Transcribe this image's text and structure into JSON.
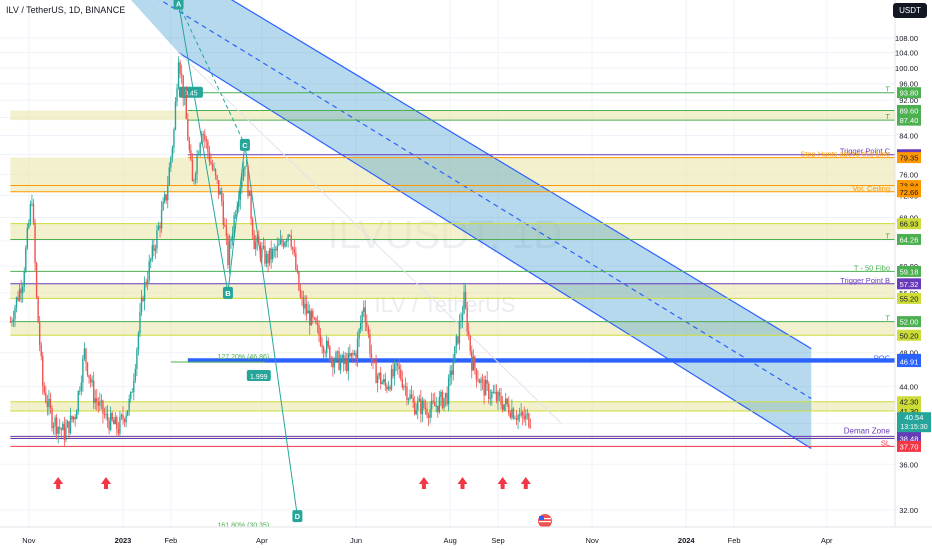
{
  "header": {
    "symbol": "ILV / TetherUS, 1D, BINANCE",
    "currency": "USDT"
  },
  "watermark": {
    "main": "ILVUSDT, 1D",
    "sub": "ILV / TetherUS"
  },
  "colors": {
    "up": "#26a69a",
    "down": "#ef5350",
    "channel": "#2962ff",
    "zone": "#e9e4a6",
    "support": "#7e57c2"
  },
  "chart_data": {
    "type": "candlestick",
    "y_axis": {
      "scale": "log",
      "range": [
        30.5,
        130
      ],
      "ticks": [
        32,
        36,
        40,
        44,
        48,
        52,
        56,
        60,
        64,
        68,
        72,
        76,
        80,
        84,
        88,
        92,
        96,
        100,
        104,
        108
      ]
    },
    "x_axis": {
      "ticks": [
        {
          "label": "Nov",
          "date": "2022-11-01"
        },
        {
          "label": "2023",
          "date": "2023-01-01"
        },
        {
          "label": "Feb",
          "date": "2023-02-01"
        },
        {
          "label": "Apr",
          "date": "2023-04-01"
        },
        {
          "label": "Jun",
          "date": "2023-06-01"
        },
        {
          "label": "Aug",
          "date": "2023-08-01"
        },
        {
          "label": "Sep",
          "date": "2023-09-01"
        },
        {
          "label": "Nov",
          "date": "2023-11-01"
        },
        {
          "label": "2024",
          "date": "2024-01-01"
        },
        {
          "label": "Feb",
          "date": "2024-02-01"
        },
        {
          "label": "Apr",
          "date": "2024-04-01"
        }
      ]
    },
    "price_path": [
      [
        "2022-10-20",
        52
      ],
      [
        "2022-10-28",
        58
      ],
      [
        "2022-11-03",
        72
      ],
      [
        "2022-11-06",
        55
      ],
      [
        "2022-11-10",
        44
      ],
      [
        "2022-11-16",
        40.5
      ],
      [
        "2022-11-24",
        39
      ],
      [
        "2022-12-01",
        41
      ],
      [
        "2022-12-07",
        48
      ],
      [
        "2022-12-13",
        43
      ],
      [
        "2022-12-21",
        40.5
      ],
      [
        "2022-12-29",
        39.5
      ],
      [
        "2023-01-06",
        42.5
      ],
      [
        "2023-01-14",
        56
      ],
      [
        "2023-01-22",
        64
      ],
      [
        "2023-01-29",
        72
      ],
      [
        "2023-02-03",
        85
      ],
      [
        "2023-02-06",
        104
      ],
      [
        "2023-02-10",
        91
      ],
      [
        "2023-02-15",
        74
      ],
      [
        "2023-02-21",
        86
      ],
      [
        "2023-02-28",
        77
      ],
      [
        "2023-03-06",
        71
      ],
      [
        "2023-03-10",
        61
      ],
      [
        "2023-03-15",
        70
      ],
      [
        "2023-03-21",
        79
      ],
      [
        "2023-03-27",
        64
      ],
      [
        "2023-04-04",
        61
      ],
      [
        "2023-04-11",
        62.5
      ],
      [
        "2023-04-19",
        66
      ],
      [
        "2023-04-26",
        55
      ],
      [
        "2023-05-06",
        51
      ],
      [
        "2023-05-16",
        47.5
      ],
      [
        "2023-05-25",
        46.5
      ],
      [
        "2023-06-01",
        48
      ],
      [
        "2023-06-06",
        54.5
      ],
      [
        "2023-06-12",
        46
      ],
      [
        "2023-06-20",
        44
      ],
      [
        "2023-06-28",
        46
      ],
      [
        "2023-07-08",
        42
      ],
      [
        "2023-07-20",
        41.5
      ],
      [
        "2023-07-30",
        43
      ],
      [
        "2023-08-05",
        49
      ],
      [
        "2023-08-10",
        55
      ],
      [
        "2023-08-15",
        47
      ],
      [
        "2023-08-22",
        44
      ],
      [
        "2023-09-01",
        42.5
      ],
      [
        "2023-09-10",
        41.5
      ],
      [
        "2023-09-16",
        40.5
      ],
      [
        "2023-09-22",
        40.5
      ]
    ],
    "horizontal_levels": [
      {
        "price": 93.8,
        "label": "T",
        "value": "93.80",
        "color": "#4caf50"
      },
      {
        "price": 89.6,
        "value": "89.60",
        "color": "#4caf50"
      },
      {
        "price": 87.4,
        "label": "T",
        "value": "87.40",
        "color": "#4caf50"
      },
      {
        "price": 79.94,
        "label": "Trigger Point C",
        "value": "79.94",
        "color": "#673ab7"
      },
      {
        "price": 79.35,
        "label": "Stop Hunts above this Line",
        "value": "79.35",
        "color": "#ff9800"
      },
      {
        "price": 73.84,
        "value": "73.84",
        "color": "#ff9800"
      },
      {
        "price": 72.66,
        "label": "Vol. Ceiling",
        "value": "72.66",
        "color": "#ff9800"
      },
      {
        "price": 66.93,
        "value": "66.93",
        "color": "#cddc39"
      },
      {
        "price": 64.26,
        "label": "T",
        "value": "64.26",
        "color": "#4caf50"
      },
      {
        "price": 59.18,
        "label": "T - 50 Fibo",
        "value": "59.18",
        "color": "#4caf50"
      },
      {
        "price": 57.32,
        "label": "Trigger Point B",
        "value": "57.32",
        "color": "#673ab7"
      },
      {
        "price": 55.2,
        "value": "55.20",
        "color": "#cddc39"
      },
      {
        "price": 52.0,
        "label": "T",
        "value": "52.00",
        "color": "#4caf50"
      },
      {
        "price": 50.2,
        "value": "50.20",
        "color": "#cddc39"
      },
      {
        "price": 47.18,
        "value": "47.18",
        "color": "#2962ff"
      },
      {
        "price": 46.91,
        "label": "POC",
        "value": "46.91",
        "color": "#2962ff"
      },
      {
        "price": 42.3,
        "value": "42.30",
        "color": "#cddc39"
      },
      {
        "price": 41.3,
        "value": "41.30",
        "color": "#cddc39"
      },
      {
        "price": 38.69,
        "value": "38.69",
        "color": "#673ab7"
      },
      {
        "price": 38.48,
        "value": "38.48",
        "color": "#673ab7"
      },
      {
        "price": 37.7,
        "label": "SL",
        "value": "37.70",
        "color": "#f23645"
      }
    ],
    "zones": [
      {
        "from": 87.4,
        "to": 89.6,
        "label": ""
      },
      {
        "from": 72.66,
        "to": 79.35,
        "label": ""
      },
      {
        "from": 64.26,
        "to": 66.93,
        "label": ""
      },
      {
        "from": 55.2,
        "to": 57.32,
        "label": ""
      },
      {
        "from": 50.2,
        "to": 52.0,
        "label": ""
      },
      {
        "from": 41.3,
        "to": 42.3,
        "label": ""
      },
      {
        "from": 38.48,
        "to": 38.69,
        "label": "Deman Zone"
      }
    ],
    "channel": {
      "upper": [
        [
          "2022-10-20",
          168
        ],
        [
          "2024-03-22",
          48.5
        ]
      ],
      "lower": [
        [
          "2023-02-06",
          104
        ],
        [
          "2024-03-22",
          37.5
        ]
      ]
    },
    "trendline_white": [
      [
        "2023-02-06",
        104
      ],
      [
        "2023-10-12",
        40
      ]
    ],
    "pattern_points": [
      {
        "name": "A",
        "date": "2023-02-06",
        "price": 118
      },
      {
        "name": "B",
        "date": "2023-03-10",
        "price": 56
      },
      {
        "name": "C",
        "date": "2023-03-21",
        "price": 82
      },
      {
        "name": "D",
        "date": "2023-04-24",
        "price": 31.5
      }
    ],
    "pattern_labels": [
      {
        "text": "0.45",
        "date": "2023-02-14",
        "price": 93.8
      },
      {
        "text": "1.999",
        "date": "2023-03-30",
        "price": 45.2
      },
      {
        "text": "127.20% (46.86)",
        "date": "2023-03-20",
        "price": 46.86
      },
      {
        "text": "161.80% (30.35)",
        "date": "2023-03-20",
        "price": 30.35
      }
    ],
    "demand_arrows": [
      "2022-11-20",
      "2022-12-21",
      "2023-07-15",
      "2023-08-09",
      "2023-09-04",
      "2023-09-19"
    ],
    "current_price": {
      "value": "40.54",
      "countdown": "13:15:30"
    }
  }
}
